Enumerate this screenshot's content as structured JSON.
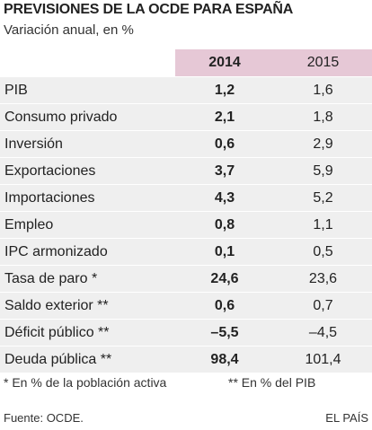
{
  "header": {
    "title": "PREVISIONES DE LA OCDE PARA ESPAÑA",
    "subtitle": "Variación anual, en %"
  },
  "table": {
    "columns": [
      "2014",
      "2015"
    ],
    "rows": [
      [
        "PIB",
        "1,2",
        "1,6"
      ],
      [
        "Consumo privado",
        "2,1",
        "1,8"
      ],
      [
        "Inversión",
        "0,6",
        "2,9"
      ],
      [
        "Exportaciones",
        "3,7",
        "5,9"
      ],
      [
        "Importaciones",
        "4,3",
        "5,2"
      ],
      [
        "Empleo",
        "0,8",
        "1,1"
      ],
      [
        "IPC armonizado",
        "0,1",
        "0,5"
      ],
      [
        "Tasa de paro *",
        "24,6",
        "23,6"
      ],
      [
        "Saldo exterior **",
        "0,6",
        "0,7"
      ],
      [
        "Déficit público **",
        "–5,5",
        "–4,5"
      ],
      [
        "Deuda pública **",
        "98,4",
        "101,4"
      ]
    ]
  },
  "footnotes": [
    "* En % de la población activa",
    "** En % del PIB"
  ],
  "source": "Fuente: OCDE.",
  "credit": "EL PAÍS"
}
